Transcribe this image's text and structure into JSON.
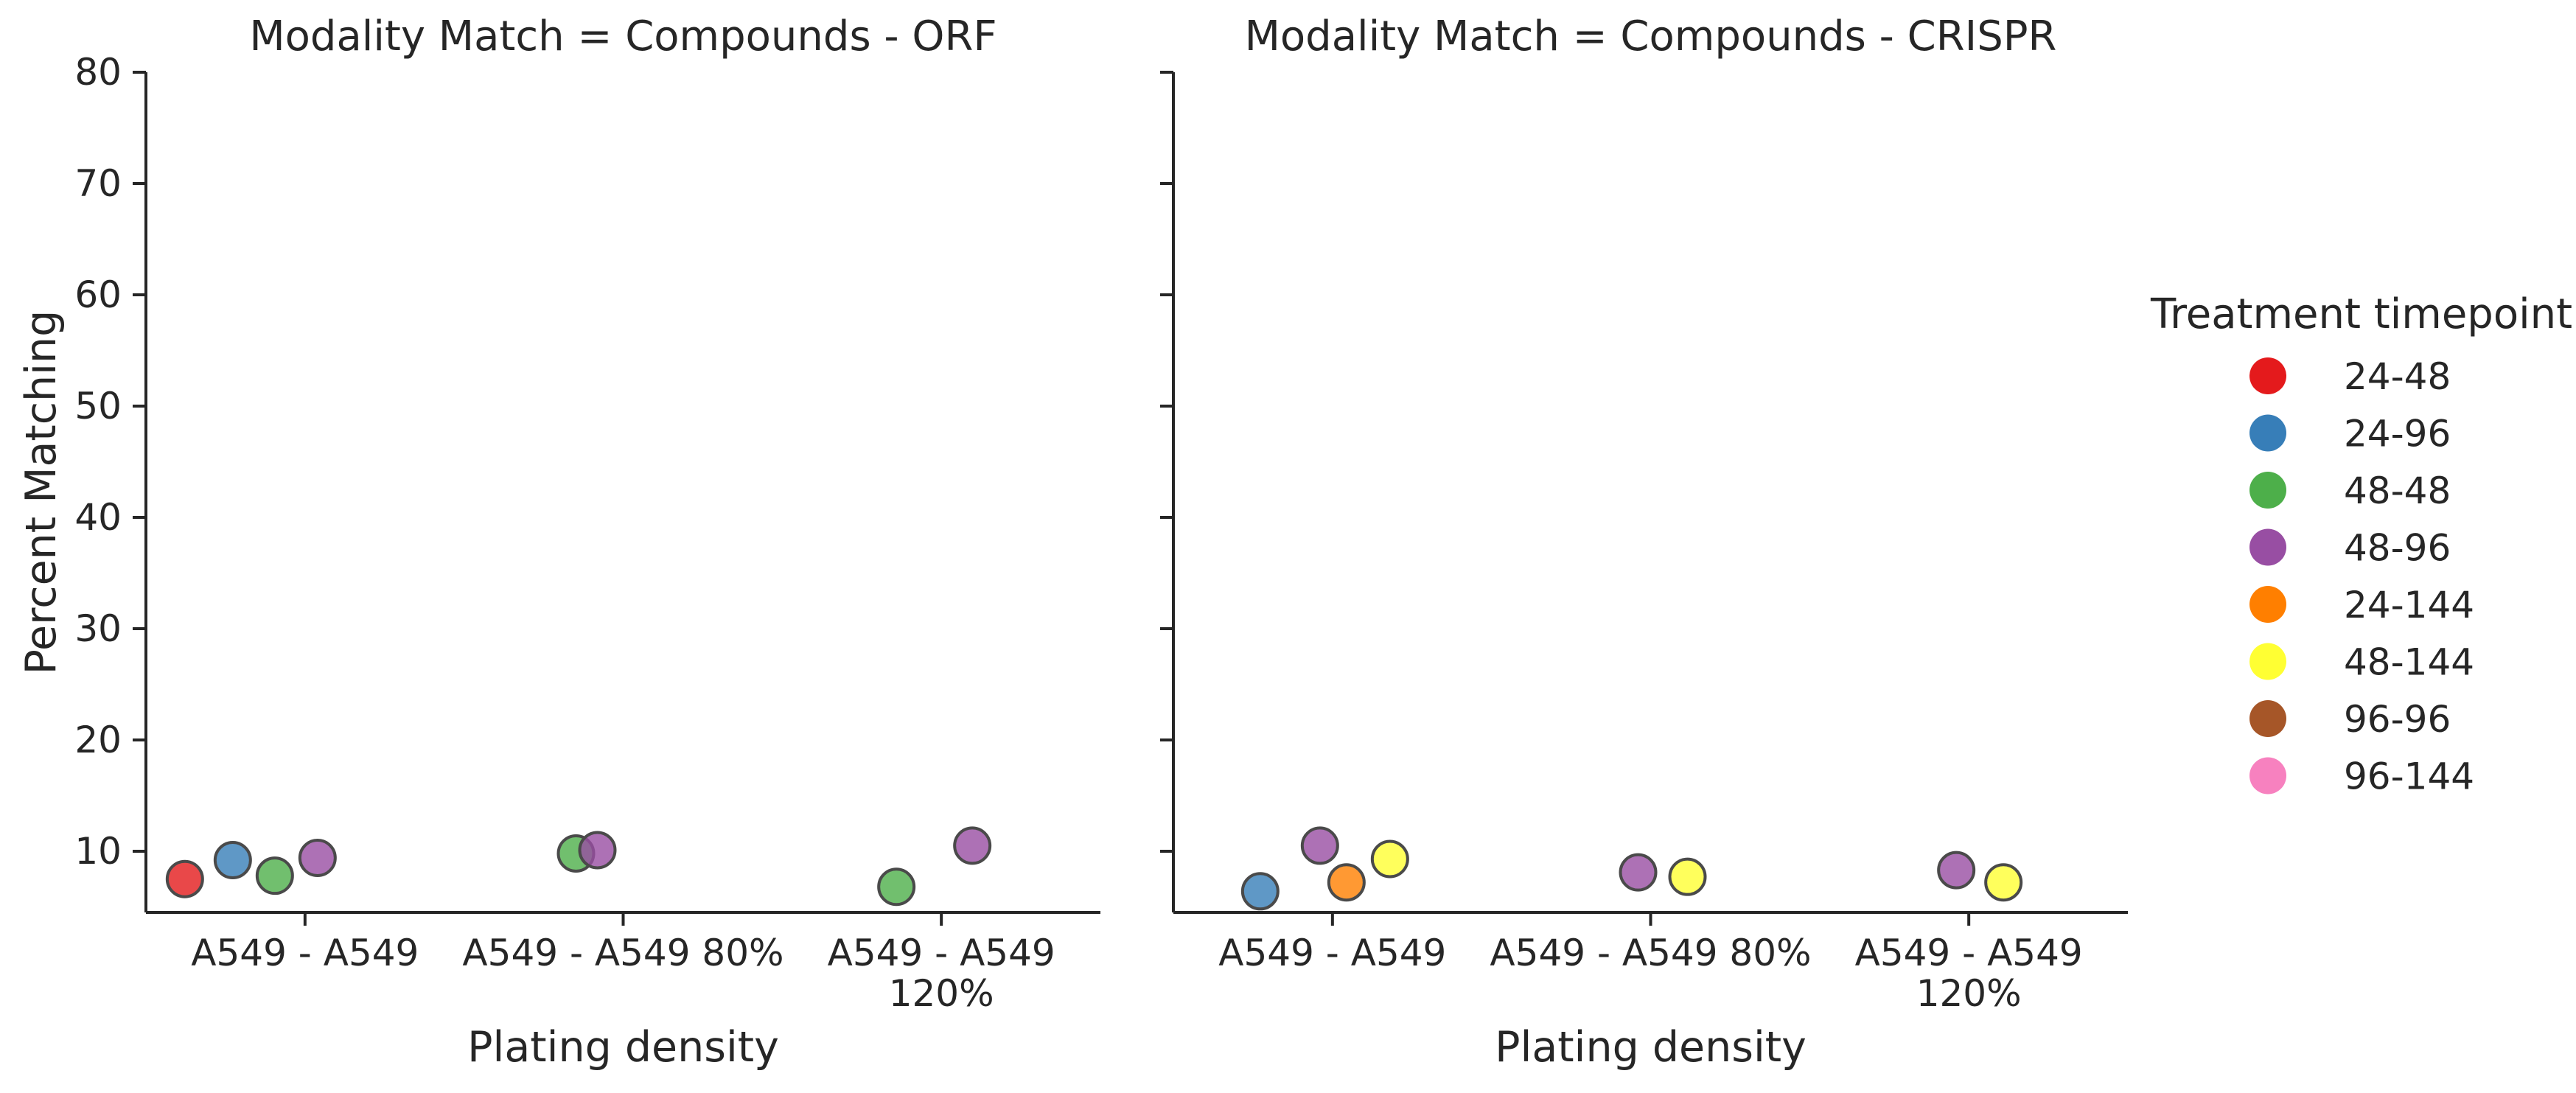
{
  "chart_data": {
    "type": "scatter",
    "ylabel": "Percent Matching",
    "ylim": [
      4.5,
      80
    ],
    "yticks": [
      10,
      20,
      30,
      40,
      50,
      60,
      70,
      80
    ],
    "grid": false,
    "legend": {
      "title": "Treatment timepoint",
      "placement": "right",
      "items": [
        {
          "label": "24-48",
          "color": "#e41a1c"
        },
        {
          "label": "24-96",
          "color": "#377eb8"
        },
        {
          "label": "48-48",
          "color": "#4daf4a"
        },
        {
          "label": "48-96",
          "color": "#984ea3"
        },
        {
          "label": "24-144",
          "color": "#ff7f00"
        },
        {
          "label": "48-144",
          "color": "#ffff33"
        },
        {
          "label": "96-96",
          "color": "#a65628"
        },
        {
          "label": "96-144",
          "color": "#f781bf"
        }
      ]
    },
    "panels": [
      {
        "title": "Modality Match = Compounds - ORF",
        "xlabel": "Plating density",
        "categories": [
          {
            "lines": [
              "A549 - A549"
            ]
          },
          {
            "lines": [
              "A549 - A549 80%"
            ]
          },
          {
            "lines": [
              "A549 - A549",
              "120%"
            ]
          }
        ],
        "points": [
          {
            "category": 0,
            "series": "24-48",
            "y": 7.5
          },
          {
            "category": 0,
            "series": "24-96",
            "y": 9.2
          },
          {
            "category": 0,
            "series": "48-48",
            "y": 7.8
          },
          {
            "category": 0,
            "series": "48-96",
            "y": 9.4
          },
          {
            "category": 1,
            "series": "48-48",
            "y": 9.8
          },
          {
            "category": 1,
            "series": "48-96",
            "y": 10.1
          },
          {
            "category": 2,
            "series": "48-48",
            "y": 6.8
          },
          {
            "category": 2,
            "series": "48-96",
            "y": 10.5
          }
        ]
      },
      {
        "title": "Modality Match = Compounds - CRISPR",
        "xlabel": "Plating density",
        "categories": [
          {
            "lines": [
              "A549 - A549"
            ]
          },
          {
            "lines": [
              "A549 - A549 80%"
            ]
          },
          {
            "lines": [
              "A549 - A549",
              "120%"
            ]
          }
        ],
        "points": [
          {
            "category": 0,
            "series": "24-96",
            "y": 6.4
          },
          {
            "category": 0,
            "series": "48-96",
            "y": 10.5
          },
          {
            "category": 0,
            "series": "24-144",
            "y": 7.2
          },
          {
            "category": 0,
            "series": "48-144",
            "y": 9.3
          },
          {
            "category": 1,
            "series": "48-96",
            "y": 8.1
          },
          {
            "category": 1,
            "series": "48-144",
            "y": 7.7
          },
          {
            "category": 2,
            "series": "48-96",
            "y": 8.3
          },
          {
            "category": 2,
            "series": "48-144",
            "y": 7.2
          }
        ]
      }
    ]
  }
}
